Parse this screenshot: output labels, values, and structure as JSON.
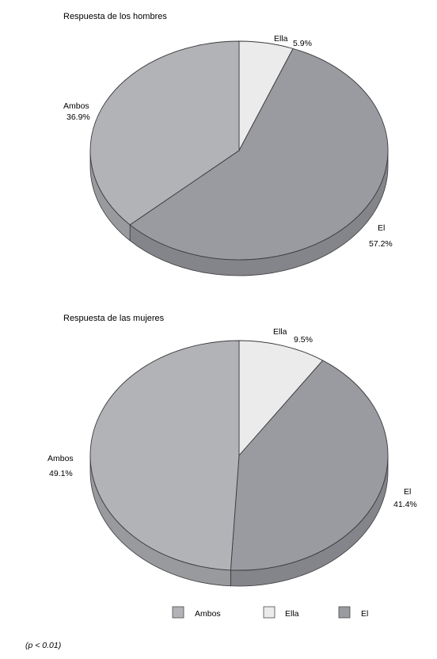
{
  "chart_data": [
    {
      "type": "pie",
      "title": "Respuesta de los hombres",
      "slices": [
        {
          "label": "Ella",
          "value": 5.9,
          "display": "5.9%",
          "color": "#ebebeb"
        },
        {
          "label": "El",
          "value": 57.2,
          "display": "57.2%",
          "color": "#9a9ba0"
        },
        {
          "label": "Ambos",
          "value": 36.9,
          "display": "36.9%",
          "color": "#b2b3b7"
        }
      ]
    },
    {
      "type": "pie",
      "title": "Respuesta de las mujeres",
      "slices": [
        {
          "label": "Ella",
          "value": 9.5,
          "display": "9.5%",
          "color": "#ebebeb"
        },
        {
          "label": "El",
          "value": 41.4,
          "display": "41.4%",
          "color": "#9a9ba0"
        },
        {
          "label": "Ambos",
          "value": 49.1,
          "display": "49.1%",
          "color": "#b2b3b7"
        }
      ]
    }
  ],
  "legend": [
    {
      "label": "Ambos",
      "color": "#b2b3b7"
    },
    {
      "label": "Ella",
      "color": "#ebebeb"
    },
    {
      "label": "El",
      "color": "#9a9ba0"
    }
  ],
  "note": "(p < 0.01)"
}
